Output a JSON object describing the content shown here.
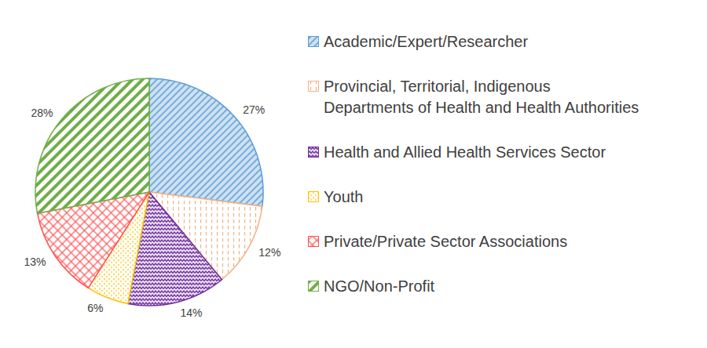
{
  "chart_data": {
    "type": "pie",
    "categories": [
      "Academic/Expert/Researcher",
      "Provincial, Territorial, Indigenous Departments of Health and Health Authorities",
      "Health and Allied Health Services Sector",
      "Youth",
      "Private/Private Sector Associations",
      "NGO/Non-Profit"
    ],
    "values": [
      27,
      12,
      14,
      6,
      13,
      28
    ],
    "value_labels": [
      "27%",
      "12%",
      "14%",
      "6%",
      "13%",
      "28%"
    ],
    "colors": [
      "#5B9BD5",
      "#F4B183",
      "#7030A0",
      "#FFC000",
      "#FF5050",
      "#70AD47"
    ],
    "data_labels": true,
    "legend": "right"
  }
}
